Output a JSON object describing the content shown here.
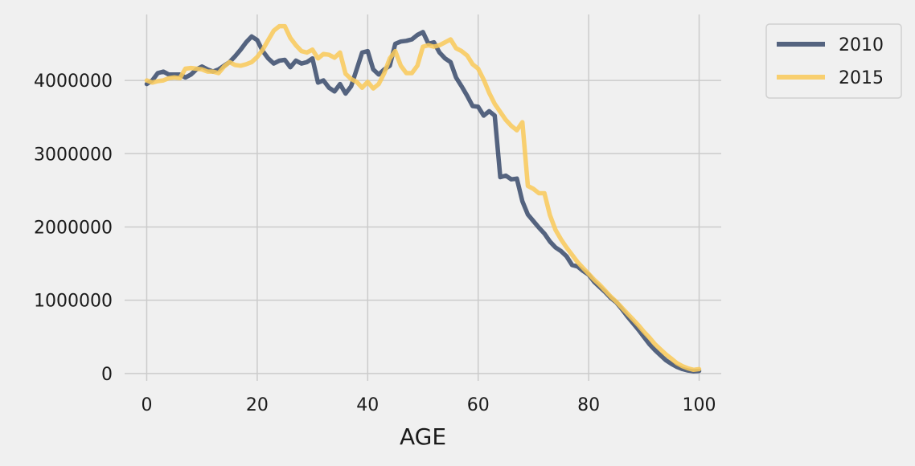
{
  "chart_data": {
    "type": "line",
    "title": "",
    "xlabel": "AGE",
    "ylabel": "",
    "xlim": [
      -4,
      104
    ],
    "ylim": [
      -100000,
      4900000
    ],
    "xticks": [
      0,
      20,
      40,
      60,
      80,
      100
    ],
    "yticks": [
      0,
      1000000,
      2000000,
      3000000,
      4000000
    ],
    "grid": true,
    "legend": "outside-top-right",
    "x": [
      0,
      1,
      2,
      3,
      4,
      5,
      6,
      7,
      8,
      9,
      10,
      11,
      12,
      13,
      14,
      15,
      16,
      17,
      18,
      19,
      20,
      21,
      22,
      23,
      24,
      25,
      26,
      27,
      28,
      29,
      30,
      31,
      32,
      33,
      34,
      35,
      36,
      37,
      38,
      39,
      40,
      41,
      42,
      43,
      44,
      45,
      46,
      47,
      48,
      49,
      50,
      51,
      52,
      53,
      54,
      55,
      56,
      57,
      58,
      59,
      60,
      61,
      62,
      63,
      64,
      65,
      66,
      67,
      68,
      69,
      70,
      71,
      72,
      73,
      74,
      75,
      76,
      77,
      78,
      79,
      80,
      81,
      82,
      83,
      84,
      85,
      86,
      87,
      88,
      89,
      90,
      91,
      92,
      93,
      94,
      95,
      96,
      97,
      98,
      99,
      100
    ],
    "series": [
      {
        "name": "2010",
        "color": "#3d4f6e",
        "values": [
          3950000,
          4000000,
          4100000,
          4120000,
          4080000,
          4080000,
          4080000,
          4040000,
          4080000,
          4150000,
          4190000,
          4150000,
          4120000,
          4150000,
          4200000,
          4250000,
          4330000,
          4420000,
          4520000,
          4600000,
          4550000,
          4400000,
          4300000,
          4230000,
          4270000,
          4280000,
          4180000,
          4270000,
          4230000,
          4250000,
          4300000,
          3970000,
          4000000,
          3900000,
          3850000,
          3950000,
          3820000,
          3920000,
          4150000,
          4380000,
          4400000,
          4150000,
          4080000,
          4150000,
          4200000,
          4500000,
          4530000,
          4540000,
          4560000,
          4620000,
          4660000,
          4500000,
          4520000,
          4380000,
          4300000,
          4250000,
          4040000,
          3920000,
          3790000,
          3650000,
          3640000,
          3520000,
          3580000,
          3520000,
          2680000,
          2700000,
          2650000,
          2660000,
          2350000,
          2170000,
          2080000,
          1990000,
          1910000,
          1800000,
          1720000,
          1670000,
          1600000,
          1480000,
          1460000,
          1400000,
          1350000,
          1250000,
          1180000,
          1110000,
          1030000,
          970000,
          880000,
          780000,
          690000,
          600000,
          500000,
          400000,
          320000,
          250000,
          180000,
          130000,
          90000,
          60000,
          40000,
          30000,
          35000
        ]
      },
      {
        "name": "2015",
        "color": "#f8c95c",
        "values": [
          4000000,
          3970000,
          3990000,
          4000000,
          4030000,
          4040000,
          4030000,
          4160000,
          4170000,
          4160000,
          4150000,
          4120000,
          4120000,
          4100000,
          4190000,
          4250000,
          4210000,
          4200000,
          4220000,
          4250000,
          4320000,
          4420000,
          4550000,
          4680000,
          4740000,
          4740000,
          4580000,
          4480000,
          4400000,
          4380000,
          4420000,
          4300000,
          4360000,
          4350000,
          4310000,
          4380000,
          4090000,
          4020000,
          3980000,
          3900000,
          3980000,
          3890000,
          3950000,
          4100000,
          4300000,
          4400000,
          4200000,
          4100000,
          4100000,
          4200000,
          4460000,
          4480000,
          4460000,
          4480000,
          4520000,
          4560000,
          4440000,
          4400000,
          4340000,
          4220000,
          4160000,
          4010000,
          3830000,
          3680000,
          3570000,
          3460000,
          3380000,
          3320000,
          3430000,
          2560000,
          2520000,
          2460000,
          2460000,
          2160000,
          1960000,
          1830000,
          1720000,
          1620000,
          1520000,
          1440000,
          1360000,
          1280000,
          1210000,
          1130000,
          1050000,
          980000,
          900000,
          820000,
          740000,
          660000,
          570000,
          490000,
          400000,
          330000,
          260000,
          200000,
          140000,
          100000,
          70000,
          50000,
          60000
        ]
      }
    ]
  }
}
